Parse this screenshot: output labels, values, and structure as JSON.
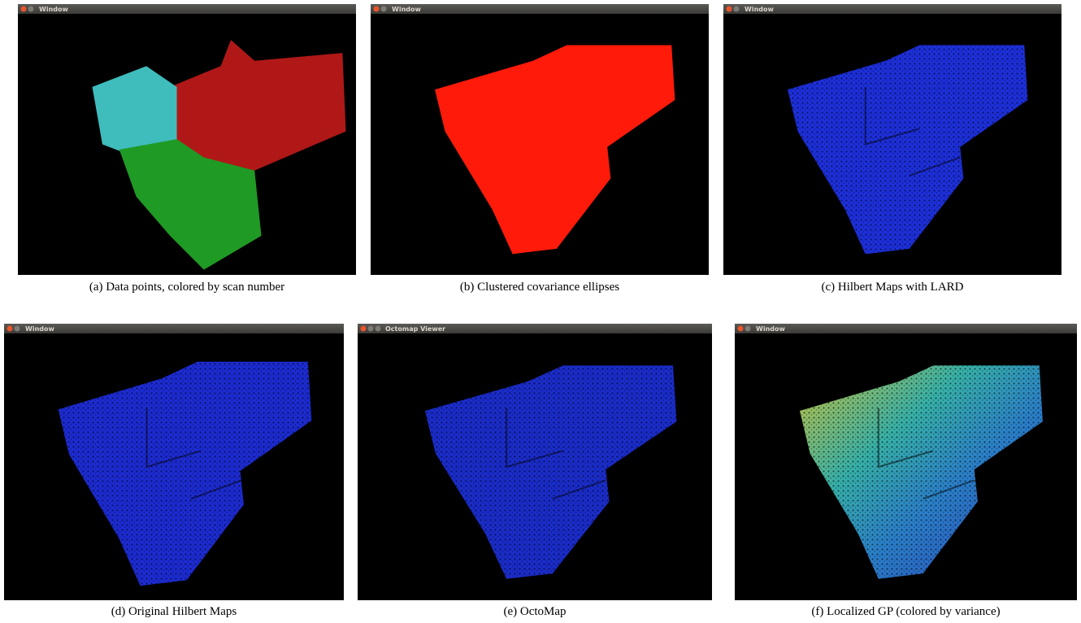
{
  "panels": [
    {
      "window_title": "Window",
      "caption": "(a) Data points, colored by scan number"
    },
    {
      "window_title": "Window",
      "caption": "(b) Clustered covariance ellipses"
    },
    {
      "window_title": "Window",
      "caption": "(c) Hilbert Maps with LARD"
    },
    {
      "window_title": "Window",
      "caption": "(d) Original Hilbert Maps"
    },
    {
      "window_title": "Octomap Viewer",
      "caption": "(e) OctoMap"
    },
    {
      "window_title": "Window",
      "caption": "(f) Localized GP (colored by variance)"
    }
  ]
}
